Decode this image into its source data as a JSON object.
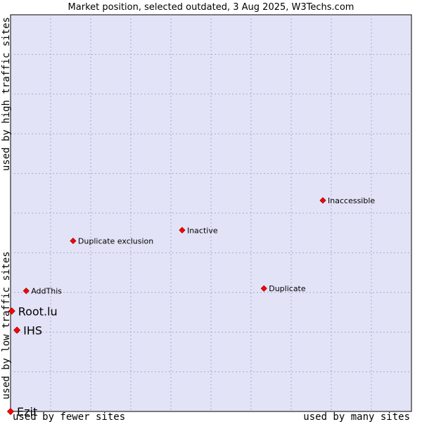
{
  "chart_data": {
    "type": "scatter",
    "title": "Market position, selected outdated, 3 Aug 2025, W3Techs.com",
    "x_axis": {
      "left_label": "used by fewer sites",
      "right_label": "used by many sites",
      "range": [
        0,
        100
      ]
    },
    "y_axis": {
      "bottom_label": "used by low traffic sites",
      "top_label": "used by high traffic sites",
      "range": [
        0,
        100
      ]
    },
    "grid": true,
    "points": [
      {
        "label": "Inaccessible",
        "x": 77.9,
        "y": 53.2,
        "size": "small"
      },
      {
        "label": "Inactive",
        "x": 42.8,
        "y": 45.7,
        "size": "small"
      },
      {
        "label": "Duplicate exclusion",
        "x": 15.6,
        "y": 43.0,
        "size": "small"
      },
      {
        "label": "AddThis",
        "x": 3.9,
        "y": 30.4,
        "size": "small"
      },
      {
        "label": "Duplicate",
        "x": 63.2,
        "y": 31.0,
        "size": "small"
      },
      {
        "label": "Root.lu",
        "x": 0.3,
        "y": 25.3,
        "size": "large"
      },
      {
        "label": "IHS",
        "x": 1.6,
        "y": 20.5,
        "size": "large"
      },
      {
        "label": "Ezit",
        "x": 0.0,
        "y": 0.0,
        "size": "large"
      }
    ]
  },
  "colors": {
    "plot_background": "#e3e3f7",
    "grid": "#aaaacc",
    "point": "#ff0000"
  }
}
